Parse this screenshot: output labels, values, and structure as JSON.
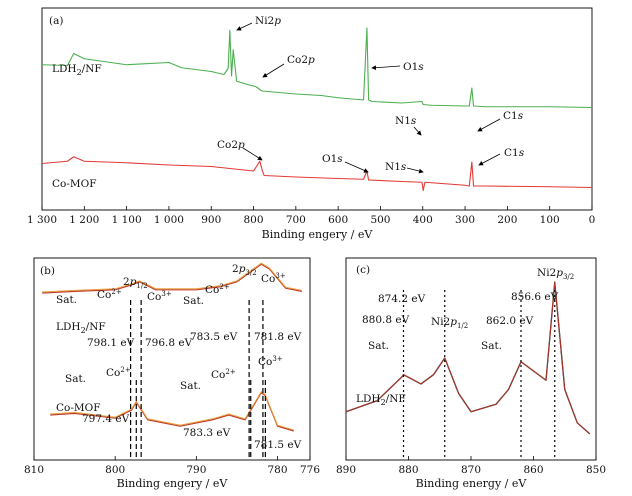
{
  "chart_data": [
    {
      "panel": "(a)",
      "type": "line",
      "xlabel": "Binding engery / eV",
      "xlim": [
        1300,
        0
      ],
      "x_reversed": true,
      "xticks": [
        1300,
        1200,
        1100,
        1000,
        900,
        800,
        700,
        600,
        500,
        400,
        300,
        200,
        100,
        0
      ],
      "xtick_labels": [
        "1 300",
        "1 200",
        "1 100",
        "1 000",
        "900",
        "800",
        "700",
        "600",
        "500",
        "400",
        "300",
        "200",
        "100",
        "0"
      ],
      "series": [
        {
          "name": "LDH2/NF",
          "color": "#4caf50",
          "x": [
            1300,
            1240,
            1225,
            1200,
            1100,
            1000,
            970,
            900,
            870,
            860,
            856,
            852,
            848,
            840,
            810,
            795,
            780,
            700,
            640,
            600,
            560,
            540,
            532,
            528,
            520,
            450,
            402,
            399,
            380,
            300,
            290,
            284,
            280,
            250,
            100,
            0
          ],
          "y": [
            47,
            46,
            62,
            55,
            47,
            50,
            43,
            38,
            34,
            42,
            93,
            32,
            67,
            25,
            20,
            18,
            12,
            8,
            6,
            3,
            1,
            0,
            96,
            0,
            -2,
            -4,
            -2,
            -6,
            -7,
            -8,
            -8,
            16,
            -8,
            -9,
            -9,
            -10
          ]
        },
        {
          "name": "Co-MOF",
          "color": "#e53935",
          "x": [
            1300,
            1240,
            1225,
            1200,
            1100,
            1000,
            900,
            800,
            785,
            780,
            775,
            700,
            600,
            540,
            532,
            528,
            450,
            402,
            399,
            395,
            300,
            290,
            284,
            280,
            250,
            100,
            0
          ],
          "y": [
            -58,
            -55,
            -49,
            -55,
            -57,
            -60,
            -62,
            -68,
            -55,
            -66,
            -74,
            -76,
            -78,
            -79,
            -68,
            -80,
            -82,
            -83,
            -94,
            -83,
            -87,
            -88,
            -56,
            -88,
            -88,
            -89,
            -90
          ]
        }
      ],
      "annotations": [
        "(a)",
        "LDH2/NF",
        "Ni2p",
        "Co2p",
        "O1s",
        "N1s",
        "C1s",
        "Co-MOF",
        "Co2p",
        "O1s",
        "N1s",
        "C1s"
      ]
    },
    {
      "panel": "(b)",
      "type": "line",
      "xlabel": "Binding engery / eV",
      "xlim": [
        810,
        776
      ],
      "x_reversed": true,
      "xticks": [
        810,
        800,
        790,
        780,
        776
      ],
      "xtick_labels": [
        "810",
        "800",
        "790",
        "780",
        "776"
      ],
      "series": [
        {
          "name": "LDH2/NF",
          "x": [
            809,
            805,
            800,
            798,
            797,
            795,
            790,
            787,
            785,
            782,
            781,
            779,
            777
          ],
          "y": [
            45,
            46,
            47,
            50,
            52,
            47,
            47,
            49,
            52,
            63,
            60,
            48,
            46
          ]
        },
        {
          "name": "Co-MOF",
          "x": [
            808,
            805,
            800,
            798,
            797.4,
            796,
            792,
            788,
            786,
            784,
            782,
            781.5,
            780,
            778
          ],
          "y": [
            25,
            26,
            23,
            28,
            33,
            22,
            18,
            22,
            25,
            22,
            39,
            37,
            18,
            15
          ]
        }
      ],
      "peaks": [
        798.1,
        796.8,
        783.5,
        781.8,
        797.4,
        783.3,
        781.5
      ],
      "annotations": [
        "(b)",
        "Sat.",
        "Co2+",
        "2p1/2",
        "Co3+",
        "Sat.",
        "Co2+",
        "2p3/2",
        "Co3+",
        "LDH2/NF",
        "798.1 eV",
        "796.8 eV",
        "783.5 eV",
        "781.8 eV",
        "Sat.",
        "Co2+",
        "Co3+",
        "Sat.",
        "Co2+",
        "Co3+",
        "Co-MOF",
        "797.4 eV",
        "783.3 eV",
        "781.5 eV"
      ]
    },
    {
      "panel": "(c)",
      "type": "line",
      "xlabel": "Binding energy / eV",
      "xlim": [
        890,
        850
      ],
      "x_reversed": true,
      "xticks": [
        890,
        880,
        870,
        860,
        850
      ],
      "xtick_labels": [
        "890",
        "880",
        "870",
        "860",
        "850"
      ],
      "series": [
        {
          "name": "LDH2/NF",
          "x": [
            890,
            885,
            881,
            880.8,
            878,
            876,
            874.2,
            872,
            870,
            866,
            864,
            862,
            860,
            858,
            856.6,
            855,
            853,
            851
          ],
          "y": [
            18,
            24,
            37,
            38,
            33,
            38,
            47,
            28,
            18,
            22,
            30,
            45,
            40,
            35,
            88,
            30,
            12,
            6
          ]
        }
      ],
      "peaks": [
        880.8,
        874.2,
        862.0,
        856.6
      ],
      "annotations": [
        "(c)",
        "Ni2p3/2",
        "874.2 eV",
        "856.6 eV",
        "880.8 eV",
        "Ni2p1/2",
        "862.0 eV",
        "Sat.",
        "Sat.",
        "LDH2/NF"
      ]
    }
  ]
}
